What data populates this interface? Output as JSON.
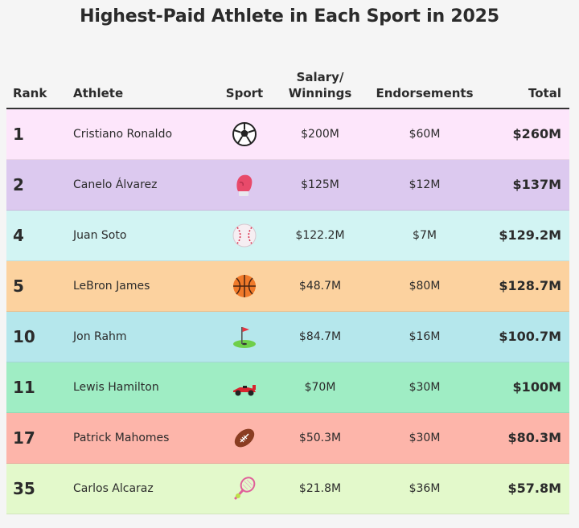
{
  "chart_data": {
    "type": "table",
    "title": "Highest-Paid Athlete in Each Sport in 2025",
    "columns": [
      "Rank",
      "Athlete",
      "Sport",
      "Salary/\nWinnings",
      "Endorsements",
      "Total"
    ],
    "rows": [
      {
        "rank": "1",
        "athlete": "Cristiano Ronaldo",
        "sport_icon": "soccer-ball-icon",
        "salary": "$200M",
        "endorsements": "$60M",
        "total": "$260M",
        "color": "#fde6fb"
      },
      {
        "rank": "2",
        "athlete": "Canelo Álvarez",
        "sport_icon": "boxing-glove-icon",
        "salary": "$125M",
        "endorsements": "$12M",
        "total": "$137M",
        "color": "#dcc9ef"
      },
      {
        "rank": "4",
        "athlete": "Juan Soto",
        "sport_icon": "baseball-icon",
        "salary": "$122.2M",
        "endorsements": "$7M",
        "total": "$129.2M",
        "color": "#d2f4f3"
      },
      {
        "rank": "5",
        "athlete": "LeBron James",
        "sport_icon": "basketball-icon",
        "salary": "$48.7M",
        "endorsements": "$80M",
        "total": "$128.7M",
        "color": "#fcd29f"
      },
      {
        "rank": "10",
        "athlete": "Jon Rahm",
        "sport_icon": "golf-flag-icon",
        "salary": "$84.7M",
        "endorsements": "$16M",
        "total": "$100.7M",
        "color": "#b5e7ec"
      },
      {
        "rank": "11",
        "athlete": "Lewis Hamilton",
        "sport_icon": "race-car-icon",
        "salary": "$70M",
        "endorsements": "$30M",
        "total": "$100M",
        "color": "#9fedc4"
      },
      {
        "rank": "17",
        "athlete": "Patrick Mahomes",
        "sport_icon": "american-football-icon",
        "salary": "$50.3M",
        "endorsements": "$30M",
        "total": "$80.3M",
        "color": "#fdb5aa"
      },
      {
        "rank": "35",
        "athlete": "Carlos Alcaraz",
        "sport_icon": "tennis-racket-icon",
        "salary": "$21.8M",
        "endorsements": "$36M",
        "total": "$57.8M",
        "color": "#e3f9cb"
      }
    ]
  }
}
